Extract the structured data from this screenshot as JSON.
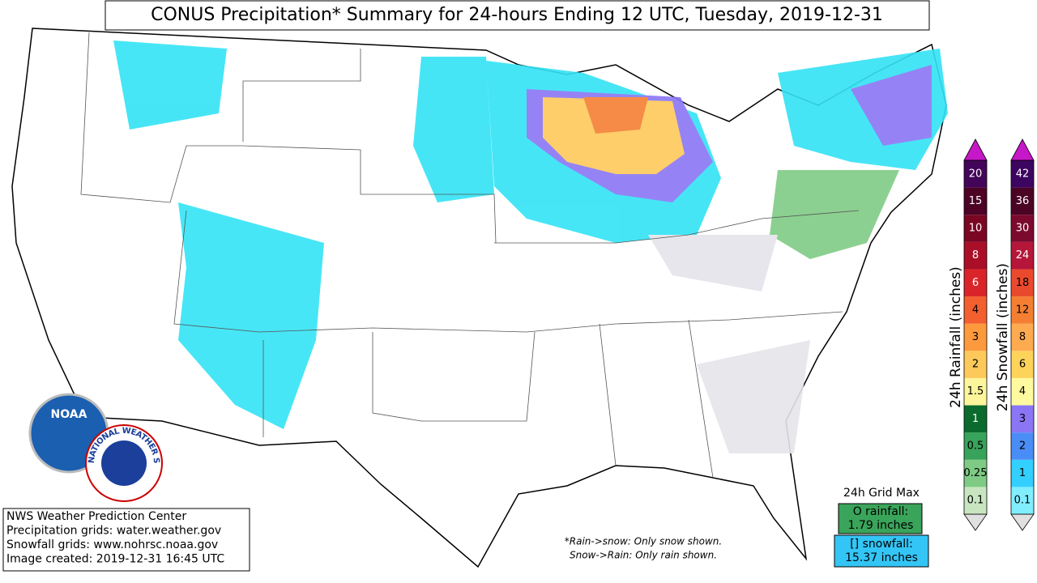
{
  "header": {
    "title": "CONUS Precipitation* Summary for 24-hours Ending 12 UTC, Tuesday, 2019-12-31"
  },
  "credits": [
    "NWS Weather Prediction Center",
    "Precipitation grids: water.weather.gov",
    "Snowfall grids: www.nohrsc.noaa.gov",
    "Image created: 2019-12-31 16:45 UTC"
  ],
  "notes": [
    "*Rain->snow: Only snow shown.",
    "Snow->Rain: Only rain shown."
  ],
  "grid_max": {
    "title": "24h Grid Max",
    "rainfall": [
      "O rainfall:",
      "1.79 inches"
    ],
    "snowfall": [
      "[] snowfall:",
      "15.37 inches"
    ]
  },
  "logos": {
    "noaa": "NOAA",
    "nws": "NATIONAL WEATHER SERVICE"
  },
  "legends": [
    {
      "title": "24h Rainfall (inches)",
      "labels": [
        "0.1",
        "0.25",
        "0.5",
        "1",
        "1.5",
        "2",
        "3",
        "4",
        "6",
        "8",
        "10",
        "15",
        "20"
      ],
      "colors": [
        "#c7e6c0",
        "#7fcb85",
        "#38a35a",
        "#0b6a2d",
        "#fdf59b",
        "#fdc95a",
        "#fd9a3d",
        "#f45f30",
        "#d9252a",
        "#aa0f27",
        "#7a0623",
        "#4c0326",
        "#430559"
      ]
    },
    {
      "title": "24h Snowfall (inches)",
      "labels": [
        "0.1",
        "1",
        "2",
        "3",
        "4",
        "6",
        "8",
        "12",
        "18",
        "24",
        "30",
        "36",
        "42"
      ],
      "colors": [
        "#80eeff",
        "#33cfff",
        "#4b8df7",
        "#8a76f5",
        "#fffaa0",
        "#fdd35a",
        "#fdaa50",
        "#f47f33",
        "#e94a2e",
        "#b5163a",
        "#7c0a2e",
        "#4b0424",
        "#3c0560"
      ]
    }
  ]
}
